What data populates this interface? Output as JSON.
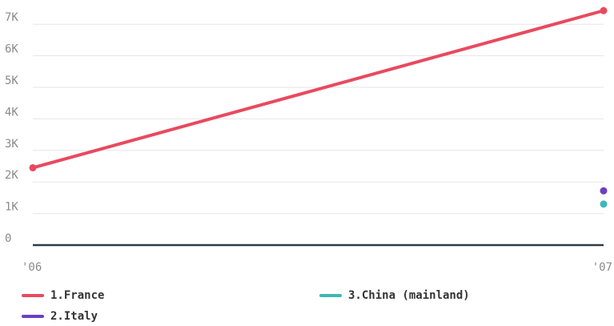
{
  "chart_data": {
    "type": "line",
    "x": [
      "'06",
      "'07"
    ],
    "ylim": [
      0,
      7500
    ],
    "y_ticks": [
      {
        "value": 0,
        "label": "0"
      },
      {
        "value": 1000,
        "label": "1K"
      },
      {
        "value": 2000,
        "label": "2K"
      },
      {
        "value": 3000,
        "label": "3K"
      },
      {
        "value": 4000,
        "label": "4K"
      },
      {
        "value": 5000,
        "label": "5K"
      },
      {
        "value": 6000,
        "label": "6K"
      },
      {
        "value": 7000,
        "label": "7K"
      }
    ],
    "grid": true,
    "legend_position": "bottom",
    "series": [
      {
        "name": "1.France",
        "color": "#e84a5f",
        "values": [
          2450,
          7430
        ]
      },
      {
        "name": "2.Italy",
        "color": "#6a3fc4",
        "values": [
          null,
          1720
        ]
      },
      {
        "name": "3.China (mainland)",
        "color": "#3fb8b8",
        "values": [
          null,
          1300
        ]
      }
    ]
  }
}
